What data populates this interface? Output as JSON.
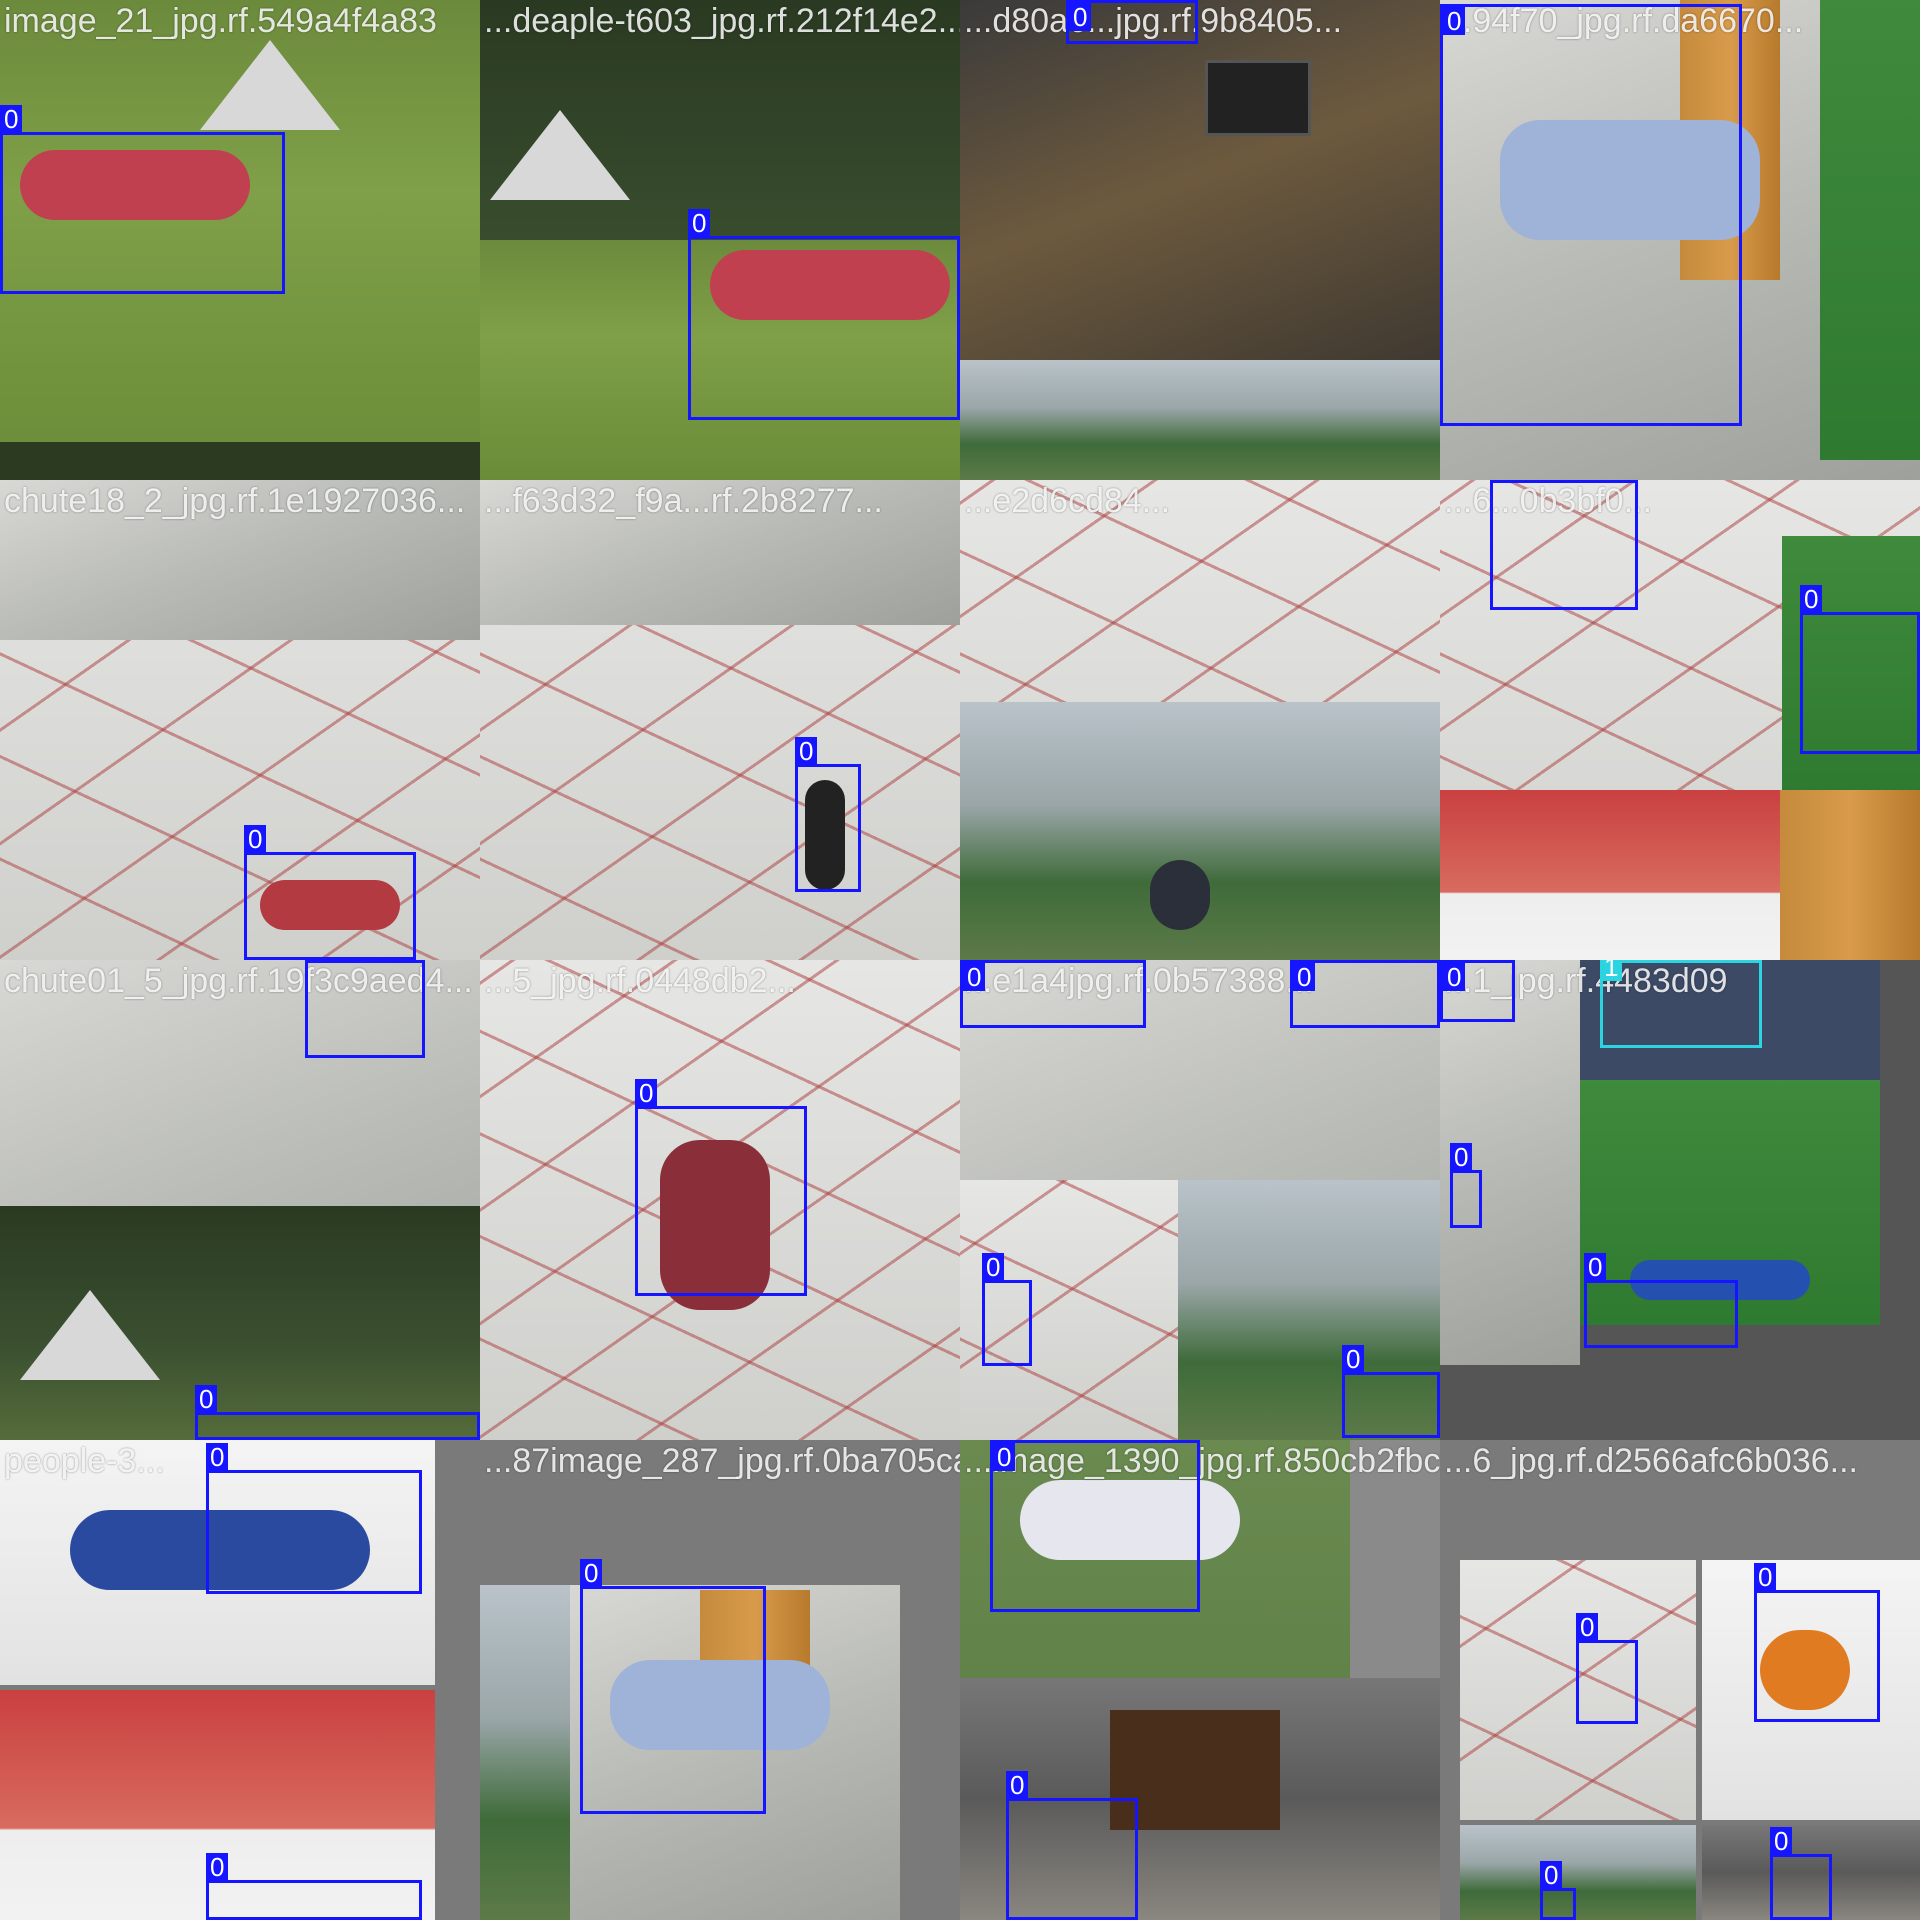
{
  "tiles": [
    {
      "filename": "image_21_jpg.rf.549a4f4a83"
    },
    {
      "filename": "...deaple-t603_jpg.rf.212f14e2..."
    },
    {
      "filename": "...d80a6...jpg.rf.9b8405..."
    },
    {
      "filename": "...94f70_jpg.rf.da6670..."
    },
    {
      "filename": "chute18_2_jpg.rf.1e1927036..."
    },
    {
      "filename": "...f63d32_f9a...rf.2b8277..."
    },
    {
      "filename": "...e2d6cd84..."
    },
    {
      "filename": "...6...0b3bf0..."
    },
    {
      "filename": "chute01_5_jpg.rf.19f3c9aed4..."
    },
    {
      "filename": "...5_jpg.rf.0448db2..."
    },
    {
      "filename": "...e1a4jpg.rf.0b57388..."
    },
    {
      "filename": "...1_jpg.rf.4483d09"
    },
    {
      "filename": "people-3..."
    },
    {
      "filename": "...87image_287_jpg.rf.0ba705caf6..."
    },
    {
      "filename": "...image_1390_jpg.rf.850cb2fbc..."
    },
    {
      "filename": "...6_jpg.rf.d2566afc6b036..."
    }
  ],
  "label_0": "0",
  "label_1": "1"
}
